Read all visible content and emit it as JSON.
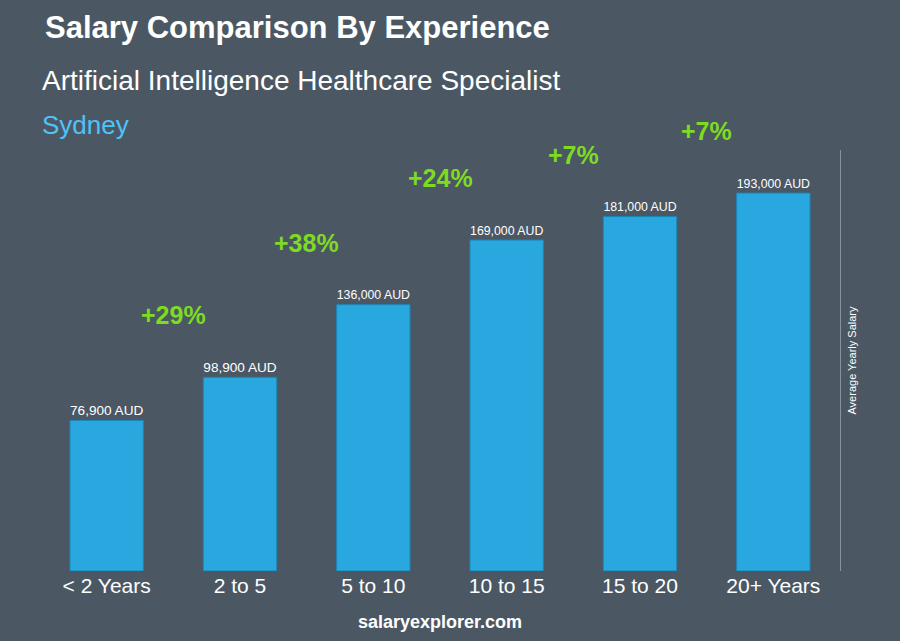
{
  "chart_data": {
    "type": "bar",
    "title": "Salary Comparison By Experience",
    "subtitle": "Artificial Intelligence Healthcare Specialist",
    "location": "Sydney",
    "y_label": "Average Yearly Salary",
    "source": "salaryexplorer.com",
    "categories": [
      "< 2 Years",
      "2 to 5",
      "5 to 10",
      "10 to 15",
      "15 to 20",
      "20+ Years"
    ],
    "values": [
      76900,
      98900,
      136000,
      169000,
      181000,
      193000
    ],
    "value_labels": [
      "76,900 AUD",
      "98,900 AUD",
      "136,000 AUD",
      "169,000 AUD",
      "181,000 AUD",
      "193,000 AUD"
    ],
    "annotations": [
      "+29%",
      "+38%",
      "+24%",
      "+7%",
      "+7%"
    ],
    "color": "#29a8e0",
    "ylim": [
      0,
      215000
    ],
    "yticks": [],
    "grid": false,
    "data_labels": true,
    "tick_labels": "x"
  }
}
